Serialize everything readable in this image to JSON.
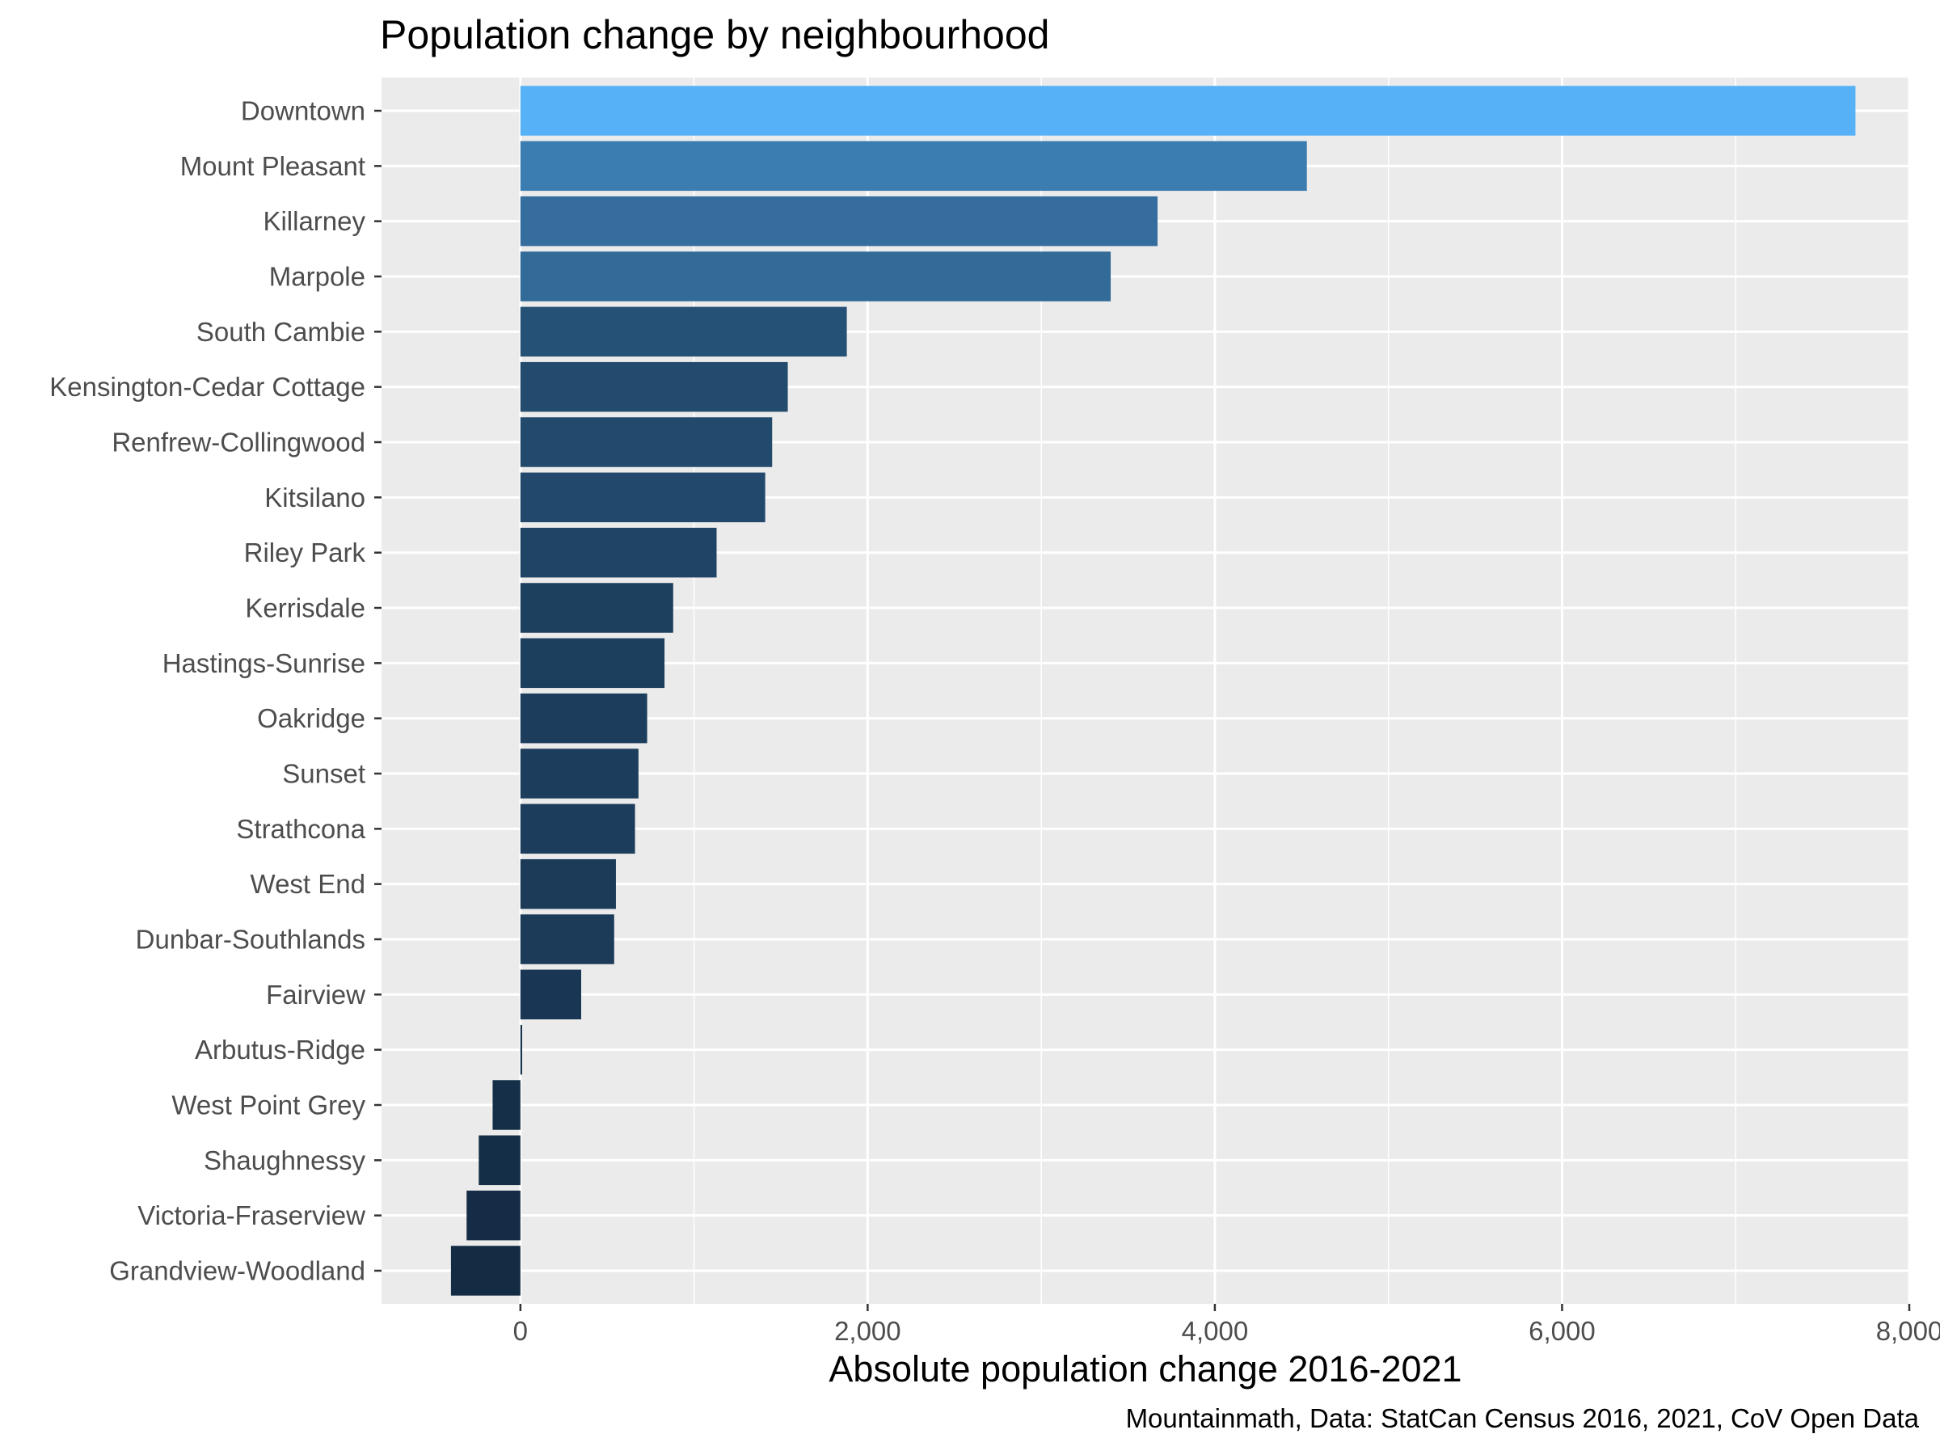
{
  "chart_data": {
    "type": "bar",
    "orientation": "horizontal",
    "title": "Population change by neighbourhood",
    "xlabel": "Absolute population change 2016-2021",
    "ylabel": "",
    "caption": "Mountainmath, Data: StatCan Census 2016, 2021, CoV Open Data",
    "xlim": [
      -800,
      8000
    ],
    "x_ticks": [
      0,
      2000,
      4000,
      6000,
      8000
    ],
    "x_tick_labels": [
      "0",
      "2,000",
      "4,000",
      "6,000",
      "8,000"
    ],
    "grid": true,
    "legend": "none",
    "categories": [
      "Downtown",
      "Mount Pleasant",
      "Killarney",
      "Marpole",
      "South Cambie",
      "Kensington-Cedar Cottage",
      "Renfrew-Collingwood",
      "Kitsilano",
      "Riley Park",
      "Kerrisdale",
      "Hastings-Sunrise",
      "Oakridge",
      "Sunset",
      "Strathcona",
      "West End",
      "Dunbar-Southlands",
      "Fairview",
      "Arbutus-Ridge",
      "West Point Grey",
      "Shaughnessy",
      "Victoria-Fraserview",
      "Grandview-Woodland"
    ],
    "values": [
      7690,
      4530,
      3670,
      3400,
      1880,
      1540,
      1450,
      1410,
      1130,
      880,
      830,
      730,
      680,
      660,
      550,
      540,
      350,
      10,
      -160,
      -240,
      -310,
      -400
    ],
    "colors": {
      "background": "#EBEBEB",
      "grid": "#FFFFFF",
      "bar_low": "#132B43",
      "bar_high": "#56B1F7"
    }
  }
}
